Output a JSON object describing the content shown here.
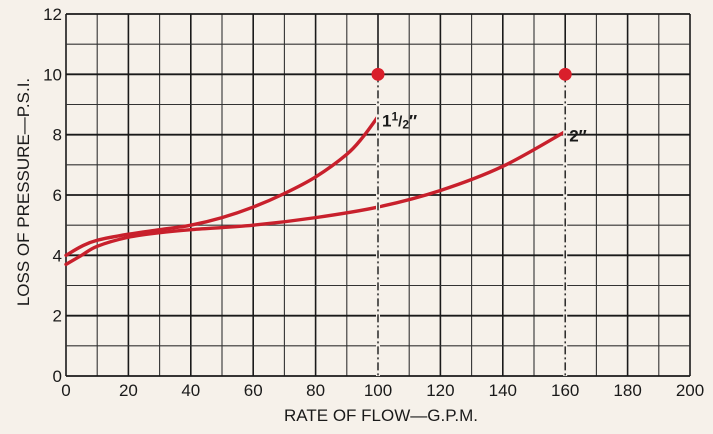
{
  "chart_data": {
    "type": "line",
    "xlabel": "RATE OF FLOW—G.P.M.",
    "ylabel": "LOSS OF PRESSURE—P.S.I.",
    "xlim": [
      0,
      200
    ],
    "ylim": [
      0,
      12
    ],
    "x_ticks": [
      0,
      20,
      40,
      60,
      80,
      100,
      120,
      140,
      160,
      180,
      200
    ],
    "y_ticks": [
      0,
      2,
      4,
      6,
      8,
      10,
      12
    ],
    "grid": true,
    "colors": {
      "line": "#c8202c",
      "marker": "#d91f2b",
      "grid_major": "#1a1a1a",
      "grid_minor": "#333333",
      "background": "#f6f1ea"
    },
    "series": [
      {
        "name": "1½″",
        "label_parts": [
          "1",
          "1",
          "/",
          "2",
          "″"
        ],
        "x": [
          0,
          5,
          10,
          20,
          30,
          40,
          50,
          60,
          70,
          80,
          90,
          95,
          100
        ],
        "y": [
          4.0,
          4.3,
          4.5,
          4.7,
          4.85,
          5.0,
          5.25,
          5.6,
          6.05,
          6.6,
          7.35,
          7.9,
          8.6
        ],
        "end_limit": {
          "x": 100,
          "y": 10
        }
      },
      {
        "name": "2″",
        "label_parts": [
          "2",
          "″"
        ],
        "x": [
          0,
          5,
          10,
          20,
          30,
          40,
          60,
          80,
          100,
          120,
          140,
          160
        ],
        "y": [
          3.7,
          4.0,
          4.3,
          4.6,
          4.75,
          4.85,
          5.0,
          5.25,
          5.6,
          6.15,
          6.95,
          8.1
        ],
        "end_limit": {
          "x": 160,
          "y": 10
        }
      }
    ]
  }
}
